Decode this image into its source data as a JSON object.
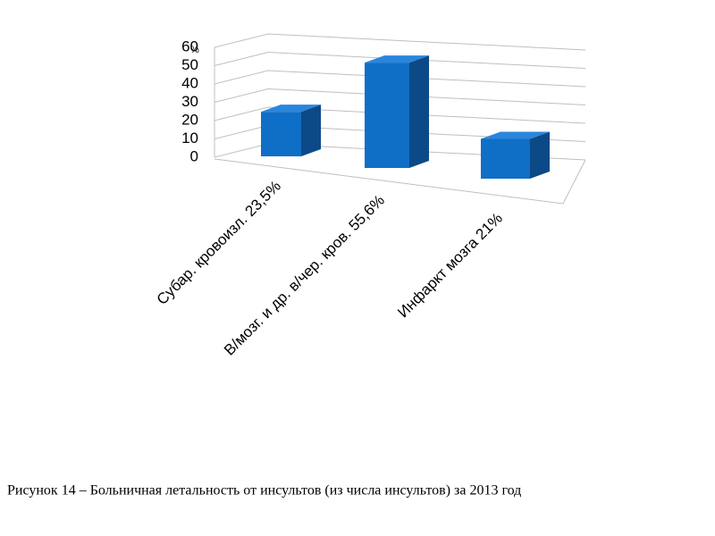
{
  "chart_data": {
    "type": "bar3d",
    "unit_label": "%",
    "categories": [
      "Субар. кровоизл. 23,5%",
      "В/мозг. и др. в/чер. кров. 55,6%",
      "Инфаркт мозга 21%"
    ],
    "values": [
      23.5,
      55.6,
      21
    ],
    "color": "#0f6ec6",
    "ylim": [
      0,
      60
    ],
    "yticks": [
      0,
      10,
      20,
      30,
      40,
      50,
      60
    ],
    "grid": true,
    "caption": "Рисунок 14 – Больничная летальность от инсультов (из числа инсультов) за 2013 год"
  }
}
